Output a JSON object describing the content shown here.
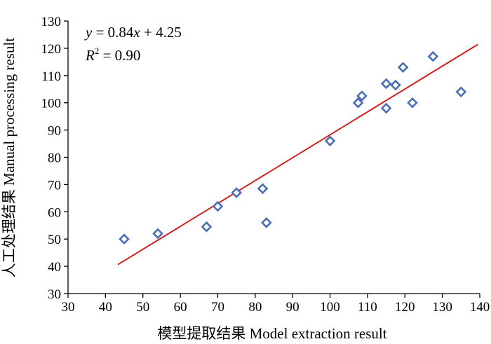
{
  "chart_data": {
    "type": "scatter",
    "xlabel": "模型提取结果 Model extraction result",
    "ylabel": "人工处理结果 Manual processing result",
    "xlim": [
      30,
      140
    ],
    "ylim": [
      30,
      130
    ],
    "x_ticks": [
      30,
      40,
      50,
      60,
      70,
      80,
      90,
      100,
      110,
      120,
      130,
      140
    ],
    "y_ticks": [
      30,
      40,
      50,
      60,
      70,
      80,
      90,
      100,
      110,
      120,
      130
    ],
    "grid": false,
    "series": [
      {
        "marker": "diamond",
        "color": "#4a6fb5",
        "points": [
          [
            45,
            50
          ],
          [
            54,
            52
          ],
          [
            67,
            54.5
          ],
          [
            70,
            62
          ],
          [
            75,
            67
          ],
          [
            82,
            68.5
          ],
          [
            83,
            56
          ],
          [
            100,
            86
          ],
          [
            107.5,
            100
          ],
          [
            108.5,
            102.5
          ],
          [
            115,
            98
          ],
          [
            115,
            107
          ],
          [
            117.5,
            106.5
          ],
          [
            119.5,
            113
          ],
          [
            122,
            100
          ],
          [
            127.5,
            117
          ],
          [
            135,
            104
          ]
        ]
      }
    ],
    "trendline": {
      "color": "#d21e1e",
      "slope": 0.84,
      "intercept": 4.25,
      "x_start": 43.3,
      "x_end": 139.5
    },
    "annotation": {
      "equation_prefix": "y",
      "equation_rest": " = 0.84",
      "equation_var": "x",
      "equation_suffix": " + 4.25",
      "r2_symbol": "R",
      "r2_superscript": "2",
      "r2_value": " = 0.90"
    }
  }
}
